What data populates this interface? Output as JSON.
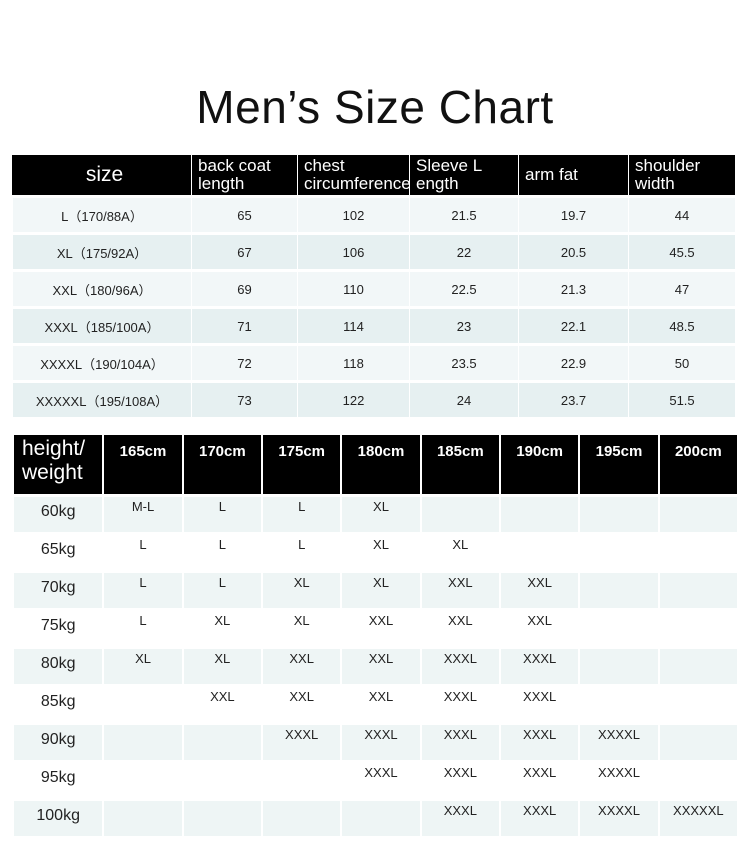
{
  "title": "Men’s Size Chart",
  "size_table": {
    "headers": [
      "size",
      "back coat length",
      "chest circumference",
      "Sleeve L ength",
      "arm fat",
      "shoulder width"
    ],
    "rows": [
      [
        "L（170/88A）",
        "65",
        "102",
        "21.5",
        "19.7",
        "44"
      ],
      [
        "XL（175/92A）",
        "67",
        "106",
        "22",
        "20.5",
        "45.5"
      ],
      [
        "XXL（180/96A）",
        "69",
        "110",
        "22.5",
        "21.3",
        "47"
      ],
      [
        "XXXL（185/100A）",
        "71",
        "114",
        "23",
        "22.1",
        "48.5"
      ],
      [
        "XXXXL（190/104A）",
        "72",
        "118",
        "23.5",
        "22.9",
        "50"
      ],
      [
        "XXXXXL（195/108A）",
        "73",
        "122",
        "24",
        "23.7",
        "51.5"
      ]
    ]
  },
  "fit_table": {
    "corner": "height/ weight",
    "heights": [
      "165cm",
      "170cm",
      "175cm",
      "180cm",
      "185cm",
      "190cm",
      "195cm",
      "200cm"
    ],
    "rows": [
      {
        "weight": "60kg",
        "sizes": [
          "M-L",
          "L",
          "L",
          "XL",
          "",
          "",
          "",
          ""
        ]
      },
      {
        "weight": "65kg",
        "sizes": [
          "L",
          "L",
          "L",
          "XL",
          "XL",
          "",
          "",
          ""
        ]
      },
      {
        "weight": "70kg",
        "sizes": [
          "L",
          "L",
          "XL",
          "XL",
          "XXL",
          "XXL",
          "",
          ""
        ]
      },
      {
        "weight": "75kg",
        "sizes": [
          "L",
          "XL",
          "XL",
          "XXL",
          "XXL",
          "XXL",
          "",
          ""
        ]
      },
      {
        "weight": "80kg",
        "sizes": [
          "XL",
          "XL",
          "XXL",
          "XXL",
          "XXXL",
          "XXXL",
          "",
          ""
        ]
      },
      {
        "weight": "85kg",
        "sizes": [
          "",
          "XXL",
          "XXL",
          "XXL",
          "XXXL",
          "XXXL",
          "",
          ""
        ]
      },
      {
        "weight": "90kg",
        "sizes": [
          "",
          "",
          "XXXL",
          "XXXL",
          "XXXL",
          "XXXL",
          "XXXXL",
          ""
        ]
      },
      {
        "weight": "95kg",
        "sizes": [
          "",
          "",
          "",
          "XXXL",
          "XXXL",
          "XXXL",
          "XXXXL",
          ""
        ]
      },
      {
        "weight": "100kg",
        "sizes": [
          "",
          "",
          "",
          "",
          "XXXL",
          "XXXL",
          "XXXXL",
          "XXXXXL"
        ]
      }
    ]
  }
}
